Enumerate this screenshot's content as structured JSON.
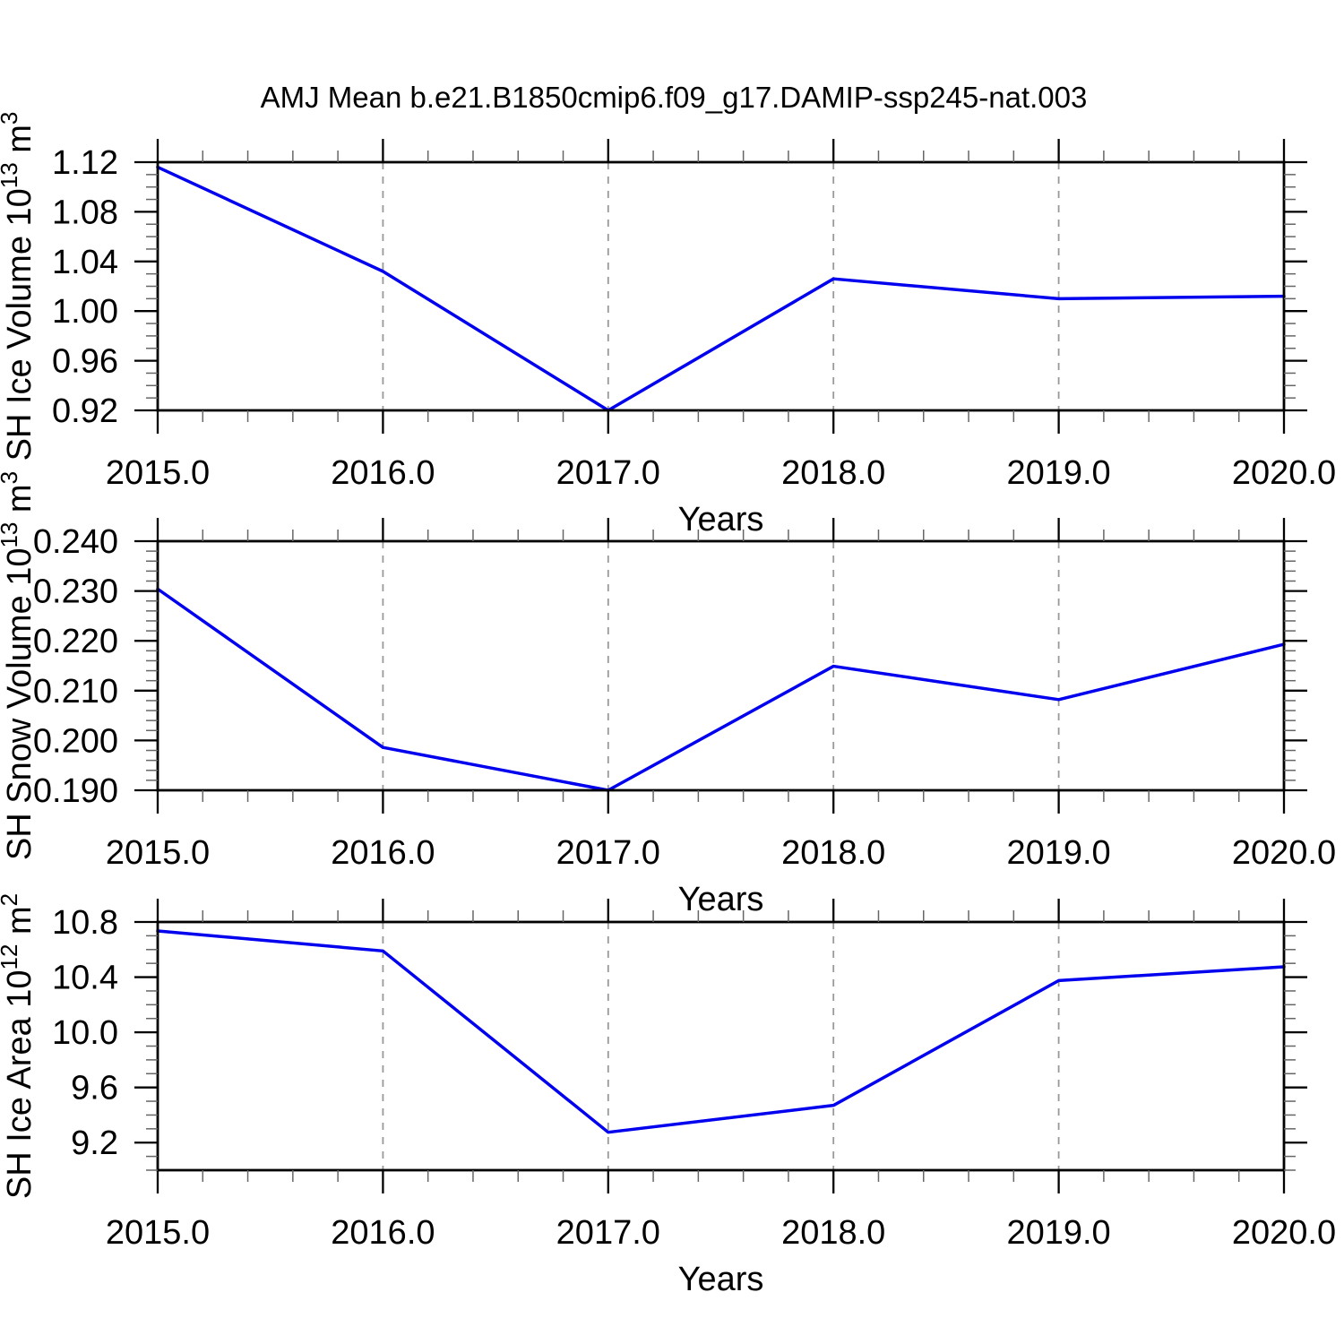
{
  "title": "AMJ Mean b.e21.B1850cmip6.f09_g17.DAMIP-ssp245-nat.003",
  "colors": {
    "line": "#0000ee",
    "axis": "#000000",
    "major_tick": "#000000",
    "minor_tick": "#666666",
    "gridline": "#999999",
    "background": "#ffffff",
    "text": "#000000"
  },
  "chart_data": [
    {
      "type": "line",
      "id": "sh-ice-volume",
      "ylabel": "SH Ice Volume 10^13 m^3",
      "ylabel_parts": [
        {
          "text": "SH Ice Volume 10"
        },
        {
          "text": "13",
          "sup": true
        },
        {
          "text": " m"
        },
        {
          "text": "3",
          "sup": true
        }
      ],
      "xlabel": "Years",
      "x": [
        2015,
        2016,
        2017,
        2018,
        2019,
        2020
      ],
      "values": [
        1.116,
        1.032,
        0.92,
        1.026,
        1.01,
        1.012
      ],
      "xlim": [
        2015,
        2020
      ],
      "ylim": [
        0.92,
        1.12
      ],
      "xticks": [
        2015,
        2016,
        2017,
        2018,
        2019,
        2020
      ],
      "xtick_labels": [
        "2015.0",
        "2016.0",
        "2017.0",
        "2018.0",
        "2019.0",
        "2020.0"
      ],
      "xminor_step": 0.2,
      "yticks": [
        0.92,
        0.96,
        1.0,
        1.04,
        1.08,
        1.12
      ],
      "ytick_labels": [
        "0.92",
        "0.96",
        "1.00",
        "1.04",
        "1.08",
        "1.12"
      ],
      "yminor_step": 0.01,
      "gridlines_x": [
        2016,
        2017,
        2018,
        2019
      ],
      "grid": "vertical-dashed",
      "legend": "none"
    },
    {
      "type": "line",
      "id": "sh-snow-volume",
      "ylabel": "SH Snow Volume 10^13 m^3",
      "ylabel_parts": [
        {
          "text": "SH Snow Volume 10"
        },
        {
          "text": "13",
          "sup": true
        },
        {
          "text": " m"
        },
        {
          "text": "3",
          "sup": true
        }
      ],
      "xlabel": "Years",
      "x": [
        2015,
        2016,
        2017,
        2018,
        2019,
        2020
      ],
      "values": [
        0.2304,
        0.1986,
        0.19,
        0.2149,
        0.2082,
        0.2193
      ],
      "xlim": [
        2015,
        2020
      ],
      "ylim": [
        0.19,
        0.24
      ],
      "xticks": [
        2015,
        2016,
        2017,
        2018,
        2019,
        2020
      ],
      "xtick_labels": [
        "2015.0",
        "2016.0",
        "2017.0",
        "2018.0",
        "2019.0",
        "2020.0"
      ],
      "xminor_step": 0.2,
      "yticks": [
        0.19,
        0.2,
        0.21,
        0.22,
        0.23,
        0.24
      ],
      "ytick_labels": [
        "0.190",
        "0.200",
        "0.210",
        "0.220",
        "0.230",
        "0.240"
      ],
      "yminor_step": 0.002,
      "gridlines_x": [
        2016,
        2017,
        2018,
        2019
      ],
      "grid": "vertical-dashed",
      "legend": "none"
    },
    {
      "type": "line",
      "id": "sh-ice-area",
      "ylabel": "SH Ice Area 10^12 m^2",
      "ylabel_parts": [
        {
          "text": "SH Ice Area 10"
        },
        {
          "text": "12",
          "sup": true
        },
        {
          "text": " m"
        },
        {
          "text": "2",
          "sup": true
        }
      ],
      "xlabel": "Years",
      "x": [
        2015,
        2016,
        2017,
        2018,
        2019,
        2020
      ],
      "values": [
        10.735,
        10.59,
        9.275,
        9.47,
        10.375,
        10.475
      ],
      "xlim": [
        2015,
        2020
      ],
      "ylim": [
        9.0,
        10.8
      ],
      "xticks": [
        2015,
        2016,
        2017,
        2018,
        2019,
        2020
      ],
      "xtick_labels": [
        "2015.0",
        "2016.0",
        "2017.0",
        "2018.0",
        "2019.0",
        "2020.0"
      ],
      "xminor_step": 0.2,
      "yticks": [
        9.2,
        9.6,
        10.0,
        10.4,
        10.8
      ],
      "ytick_labels": [
        "9.2",
        "9.6",
        "10.0",
        "10.4",
        "10.8"
      ],
      "yminor_step": 0.1,
      "gridlines_x": [
        2016,
        2017,
        2018,
        2019
      ],
      "grid": "vertical-dashed",
      "legend": "none"
    }
  ]
}
